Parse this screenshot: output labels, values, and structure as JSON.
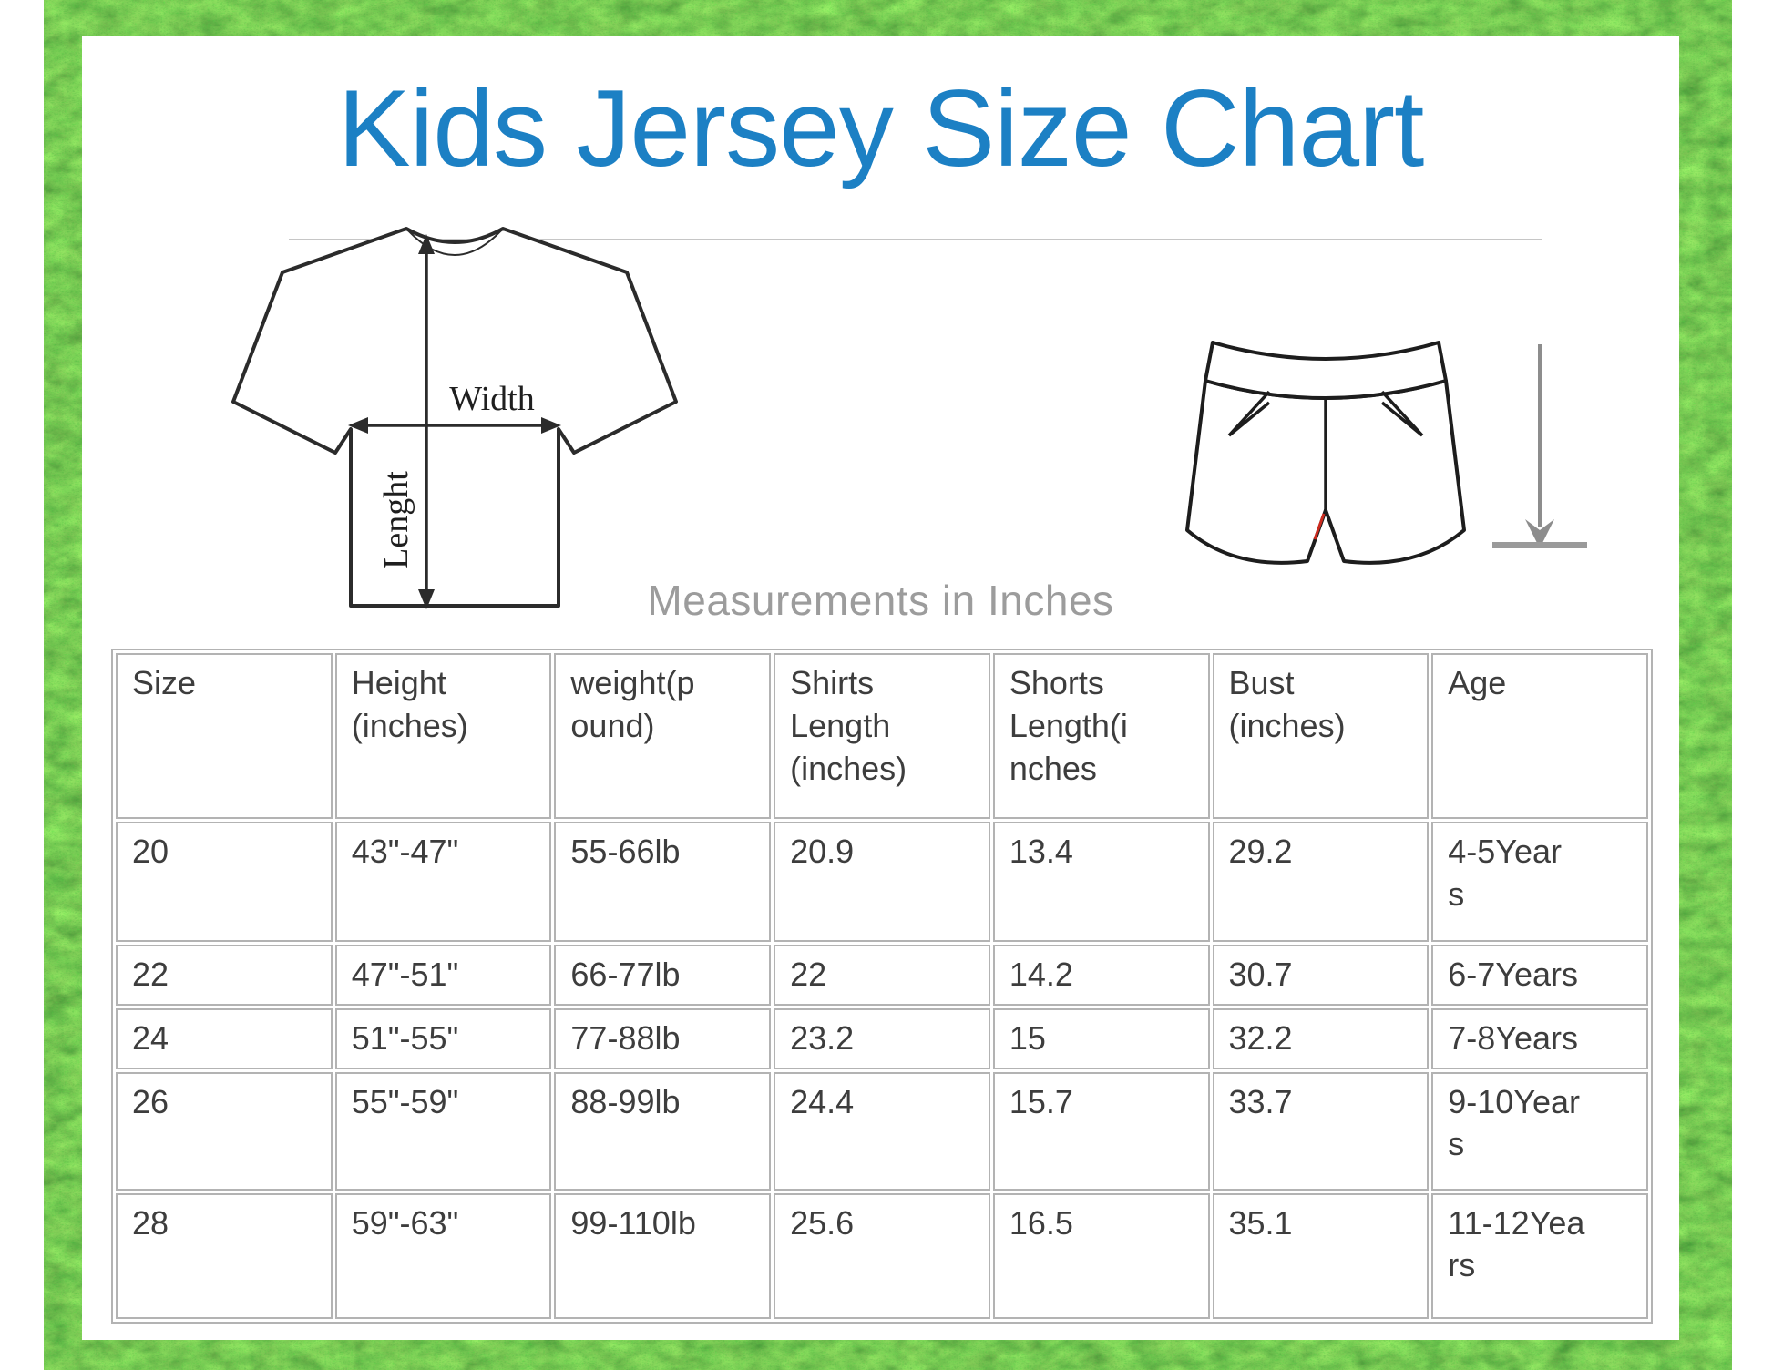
{
  "page": {
    "title": "Kids Jersey Size Chart",
    "subtitle": "Measurements in Inches"
  },
  "diagram": {
    "width_label": "Width",
    "length_label": "Lenght"
  },
  "colors": {
    "title_blue": "#1c80c4",
    "subtitle_gray": "#9c9c9c",
    "table_text": "#3d3d3d",
    "table_border": "#b3b3b3",
    "divider_gray": "#c6c6c6",
    "diagram_stroke": "#2b2b2b",
    "arrow_gray": "#8d8d8d",
    "stitch_red": "#cc2a1e",
    "grass_green": "#2e7d1e"
  },
  "chart_data": {
    "type": "table",
    "title": "Kids Jersey Size Chart",
    "headers": [
      "Size",
      "Height (inches)",
      "weight(pound)",
      "Shirts Length (inches)",
      "Shorts Length(inches",
      "Bust (inches)",
      "Age"
    ],
    "rows": [
      [
        "20",
        "43\"-47\"",
        "55-66lb",
        "20.9",
        "13.4",
        "29.2",
        "4-5Years"
      ],
      [
        "22",
        "47\"-51\"",
        "66-77lb",
        "22",
        "14.2",
        "30.7",
        "6-7Years"
      ],
      [
        "24",
        "51\"-55\"",
        "77-88lb",
        "23.2",
        "15",
        "32.2",
        "7-8Years"
      ],
      [
        "26",
        "55\"-59\"",
        "88-99lb",
        "24.4",
        "15.7",
        "33.7",
        "9-10Years"
      ],
      [
        "28",
        "59\"-63\"",
        "99-110lb",
        "25.6",
        "16.5",
        "35.1",
        "11-12Years"
      ]
    ]
  },
  "table": {
    "headers": [
      "Size",
      "Height\n(inches)",
      "weight(p\nound)",
      "Shirts\nLength\n(inches)",
      "Shorts\nLength(i\nnches",
      "Bust\n(inches)",
      "Age"
    ],
    "rows": [
      [
        "20",
        "43\"-47\"",
        "55-66lb",
        "20.9",
        "13.4",
        "29.2",
        "4-5Year\ns"
      ],
      [
        "22",
        "47\"-51\"",
        "66-77lb",
        "22",
        "14.2",
        "30.7",
        "6-7Years"
      ],
      [
        "24",
        "51\"-55\"",
        "77-88lb",
        "23.2",
        "15",
        "32.2",
        "7-8Years"
      ],
      [
        "26",
        "55\"-59\"",
        "88-99lb",
        "24.4",
        "15.7",
        "33.7",
        "9-10Year\ns"
      ],
      [
        "28",
        "59\"-63\"",
        "99-110lb",
        "25.6",
        "16.5",
        "35.1",
        "11-12Yea\nrs"
      ]
    ]
  }
}
